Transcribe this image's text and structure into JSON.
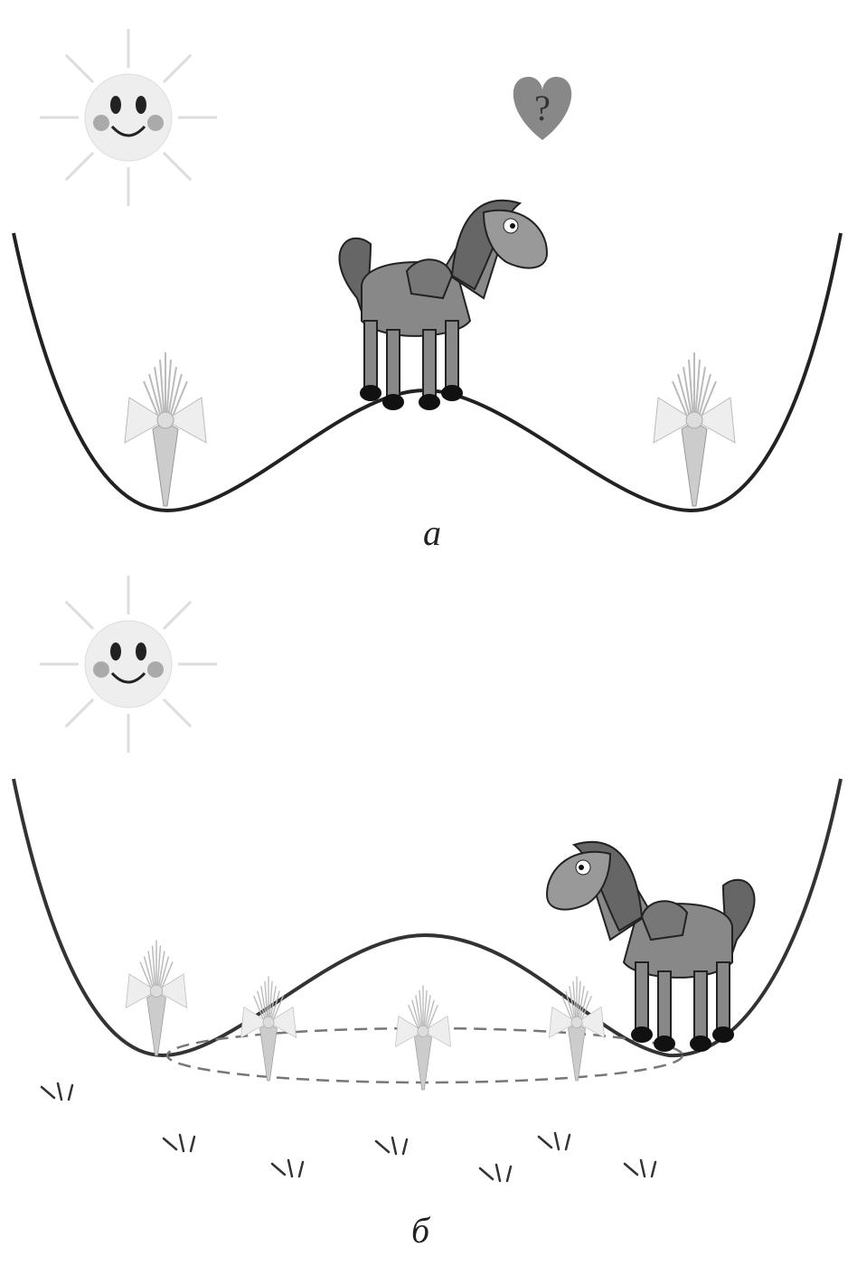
{
  "panels": [
    {
      "label": "а",
      "thought": "?"
    },
    {
      "label": "б"
    }
  ]
}
